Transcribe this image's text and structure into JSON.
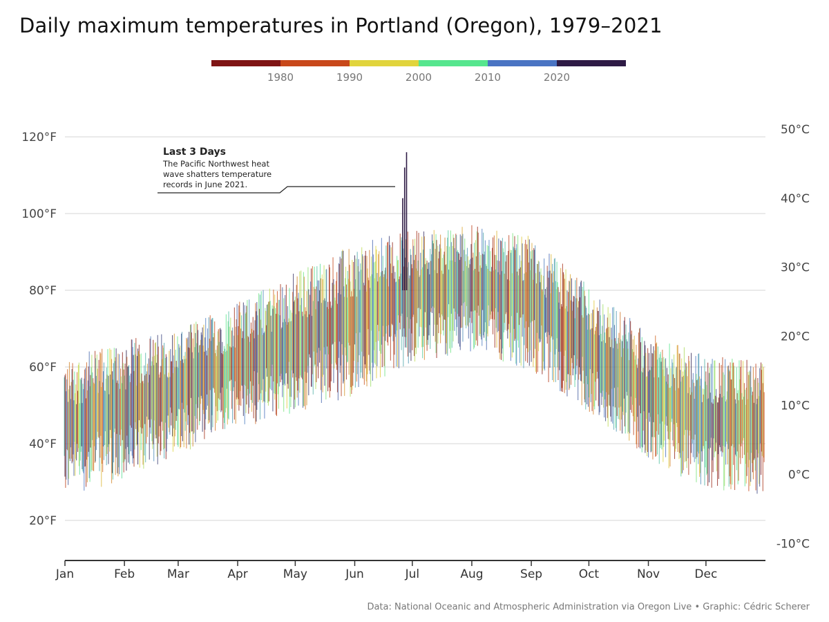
{
  "title": "Daily maximum temperatures in Portland (Oregon), 1979–2021",
  "caption": "Data: National Oceanic and Atmospheric Administration via Oregon Live • Graphic: Cédric Scherer",
  "legend": {
    "colors": [
      "#7f1414",
      "#c8481a",
      "#e1d43c",
      "#56e68e",
      "#4a74c3",
      "#2e1b45"
    ],
    "labels": [
      "1980",
      "1990",
      "2000",
      "2010",
      "2020"
    ]
  },
  "annotation": {
    "title": "Last 3 Days",
    "lines": [
      "The Pacific Northwest heat",
      "wave shatters temperature",
      "records in June 2021."
    ]
  },
  "chart_data": {
    "type": "bar",
    "description_of_marks": "one vertical range segment per day-of-year per year (daily max temperature), colored by year",
    "x_categories": [
      "Jan",
      "Feb",
      "Mar",
      "Apr",
      "May",
      "Jun",
      "Jul",
      "Aug",
      "Sep",
      "Oct",
      "Nov",
      "Dec"
    ],
    "x_range_days": [
      1,
      366
    ],
    "y_unit_left": "°F",
    "y_ticks_left": [
      "20°F",
      "40°F",
      "60°F",
      "80°F",
      "100°F",
      "120°F"
    ],
    "y_ticks_left_values": [
      20,
      40,
      60,
      80,
      100,
      120
    ],
    "y_ticks_right": [
      "-10°C",
      "0°C",
      "10°C",
      "20°C",
      "30°C",
      "40°C",
      "50°C"
    ],
    "y_ticks_right_values": [
      -10,
      0,
      10,
      20,
      30,
      40,
      50
    ],
    "ylim": [
      10,
      122
    ],
    "years": [
      1979,
      2021
    ],
    "seasonal_profile": {
      "day": [
        1,
        32,
        60,
        91,
        121,
        152,
        182,
        213,
        244,
        274,
        305,
        335,
        366
      ],
      "typical_max_f": [
        46,
        50,
        55,
        62,
        68,
        74,
        80,
        82,
        78,
        66,
        54,
        47,
        46
      ],
      "spread_f": [
        16,
        17,
        15,
        15,
        17,
        18,
        16,
        15,
        16,
        15,
        15,
        16,
        16
      ]
    },
    "record_heat_wave": {
      "year": 2021,
      "month": "Jun",
      "days": [
        26,
        27,
        28
      ],
      "max_f": [
        104,
        112,
        116
      ]
    },
    "grid": true
  }
}
